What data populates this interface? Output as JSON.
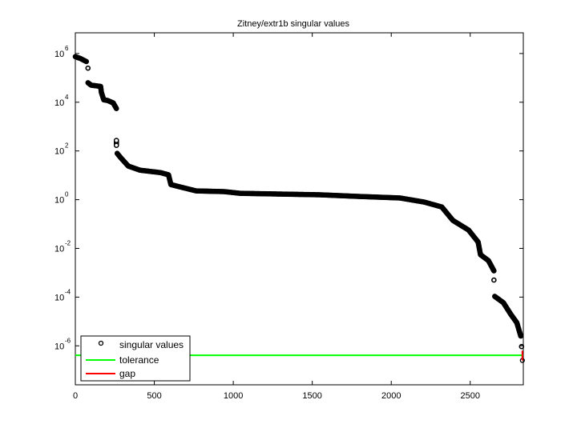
{
  "chart_data": {
    "type": "scatter",
    "title": "Zitney/extr1b singular values",
    "xlabel": "",
    "ylabel": "",
    "xscale": "linear",
    "yscale": "log",
    "xlim": [
      0,
      2836
    ],
    "ylim_log10": [
      -7.6,
      6.85
    ],
    "grid": false,
    "x_ticks": [
      0,
      500,
      1000,
      1500,
      2000,
      2500
    ],
    "x_tick_labels": [
      "0",
      "500",
      "1000",
      "1500",
      "2000",
      "2500"
    ],
    "y_ticks_log10": [
      6,
      4,
      2,
      0,
      -2,
      -4,
      -6
    ],
    "y_tick_labels": [
      {
        "base": "10",
        "exp": "6"
      },
      {
        "base": "10",
        "exp": "4"
      },
      {
        "base": "10",
        "exp": "2"
      },
      {
        "base": "10",
        "exp": "0"
      },
      {
        "base": "10",
        "exp": "-2"
      },
      {
        "base": "10",
        "exp": "-4"
      },
      {
        "base": "10",
        "exp": "-6"
      }
    ],
    "legend": {
      "position": "lower left",
      "entries": [
        {
          "label": "singular values",
          "marker": "circle",
          "color": "#000000"
        },
        {
          "label": "tolerance",
          "marker": "line",
          "color": "#00ff00"
        },
        {
          "label": "gap",
          "marker": "line",
          "color": "#ff0000"
        }
      ]
    },
    "series": [
      {
        "name": "singular values",
        "style": "circle-markers",
        "color": "#000000",
        "x": [
          0,
          30,
          70,
          80,
          80,
          100,
          160,
          165,
          180,
          205,
          240,
          260,
          260,
          260,
          265,
          285,
          335,
          410,
          540,
          590,
          605,
          665,
          765,
          945,
          1045,
          1300,
          1550,
          1805,
          2055,
          2210,
          2320,
          2390,
          2490,
          2550,
          2565,
          2615,
          2650,
          2650,
          2655,
          2710,
          2755,
          2795,
          2820,
          2825,
          2830
        ],
        "log10_y": [
          5.87,
          5.8,
          5.67,
          5.4,
          4.8,
          4.7,
          4.65,
          4.4,
          4.1,
          4.07,
          3.97,
          3.74,
          2.43,
          2.23,
          1.9,
          1.74,
          1.38,
          1.21,
          1.11,
          1.02,
          0.62,
          0.52,
          0.36,
          0.33,
          0.26,
          0.23,
          0.2,
          0.13,
          0.07,
          -0.1,
          -0.3,
          -0.85,
          -1.25,
          -1.74,
          -2.26,
          -2.5,
          -2.92,
          -3.3,
          -3.97,
          -4.23,
          -4.69,
          -5.05,
          -5.6,
          -6.03,
          -6.6
        ]
      },
      {
        "name": "tolerance",
        "style": "line",
        "color": "#00ff00",
        "x": [
          0,
          2836
        ],
        "log10_y": [
          -6.39,
          -6.39
        ]
      },
      {
        "name": "gap",
        "style": "line",
        "color": "#ff0000",
        "x": [
          2830,
          2830
        ],
        "log10_y": [
          -6.2,
          -6.6
        ]
      }
    ]
  }
}
